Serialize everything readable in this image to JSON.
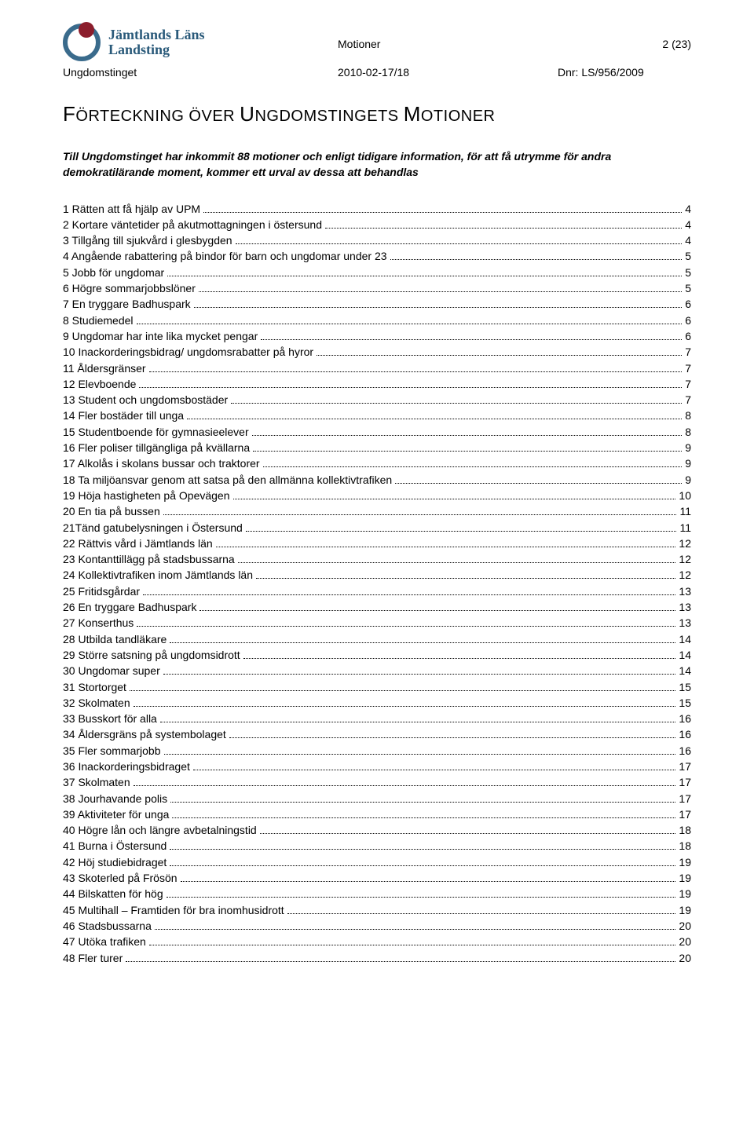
{
  "header": {
    "org_line1": "Jämtlands Läns",
    "org_line2": "Landsting",
    "doc_title": "Motioner",
    "page_indicator": "2 (23)",
    "unit": "Ungdomstinget",
    "date_range": "2010-02-17/18",
    "dnr": "Dnr: LS/956/2009"
  },
  "title_prefix": "F",
  "title_rest": "ÖRTECKNING ÖVER ",
  "title_prefix2": "U",
  "title_rest2": "NGDOMSTINGETS ",
  "title_prefix3": "M",
  "title_rest3": "OTIONER",
  "intro": "Till Ungdomstinget har inkommit 88 motioner och enligt tidigare information, för att få utrymme för andra demokratilärande moment, kommer ett urval av dessa att behandlas",
  "toc": [
    {
      "label": "1 Rätten att få hjälp av UPM",
      "page": "4"
    },
    {
      "label": "2 Kortare väntetider på akutmottagningen i östersund",
      "page": "4"
    },
    {
      "label": "3 Tillgång till sjukvård i glesbygden",
      "page": "4"
    },
    {
      "label": "4 Angående rabattering på bindor för barn och ungdomar under 23",
      "page": "5"
    },
    {
      "label": "5 Jobb för ungdomar",
      "page": "5"
    },
    {
      "label": "6 Högre sommarjobbslöner",
      "page": "5"
    },
    {
      "label": "7 En tryggare Badhuspark",
      "page": "6"
    },
    {
      "label": "8 Studiemedel",
      "page": "6"
    },
    {
      "label": "9 Ungdomar har inte lika mycket pengar",
      "page": "6"
    },
    {
      "label": "10 Inackorderingsbidrag/ ungdomsrabatter på hyror",
      "page": "7"
    },
    {
      "label": "11 Åldersgränser",
      "page": "7"
    },
    {
      "label": "12 Elevboende",
      "page": "7"
    },
    {
      "label": "13 Student och ungdomsbostäder",
      "page": "7"
    },
    {
      "label": "14 Fler bostäder till unga",
      "page": "8"
    },
    {
      "label": "15 Studentboende för gymnasieelever",
      "page": "8"
    },
    {
      "label": "16 Fler poliser tillgängliga på kvällarna",
      "page": "9"
    },
    {
      "label": "17 Alkolås i skolans bussar och traktorer",
      "page": "9"
    },
    {
      "label": "18 Ta miljöansvar genom att satsa på den allmänna kollektivtrafiken",
      "page": "9"
    },
    {
      "label": "19 Höja hastigheten på Opevägen",
      "page": "10"
    },
    {
      "label": "20 En tia på bussen",
      "page": "11"
    },
    {
      "label": "21Tänd gatubelysningen i Östersund",
      "page": "11"
    },
    {
      "label": "22 Rättvis vård i Jämtlands län",
      "page": "12"
    },
    {
      "label": "23 Kontanttillägg på stadsbussarna",
      "page": "12"
    },
    {
      "label": "24 Kollektivtrafiken inom Jämtlands län",
      "page": "12"
    },
    {
      "label": "25 Fritidsgårdar",
      "page": "13"
    },
    {
      "label": "26 En tryggare Badhuspark",
      "page": "13"
    },
    {
      "label": "27 Konserthus",
      "page": "13"
    },
    {
      "label": "28 Utbilda tandläkare",
      "page": "14"
    },
    {
      "label": "29 Större satsning på ungdomsidrott",
      "page": "14"
    },
    {
      "label": "30 Ungdomar super",
      "page": "14"
    },
    {
      "label": "31 Stortorget",
      "page": "15"
    },
    {
      "label": "32 Skolmaten",
      "page": "15"
    },
    {
      "label": "33 Busskort för alla",
      "page": "16"
    },
    {
      "label": "34 Åldersgräns på systembolaget",
      "page": "16"
    },
    {
      "label": "35 Fler sommarjobb",
      "page": "16"
    },
    {
      "label": "36 Inackorderingsbidraget",
      "page": "17"
    },
    {
      "label": "37 Skolmaten",
      "page": "17"
    },
    {
      "label": "38 Jourhavande polis",
      "page": "17"
    },
    {
      "label": "39 Aktiviteter för unga",
      "page": "17"
    },
    {
      "label": "40 Högre lån och längre avbetalningstid",
      "page": "18"
    },
    {
      "label": "41 Burna i Östersund",
      "page": "18"
    },
    {
      "label": "42 Höj studiebidraget",
      "page": "19"
    },
    {
      "label": "43 Skoterled på Frösön",
      "page": "19"
    },
    {
      "label": "44 Bilskatten för hög",
      "page": "19"
    },
    {
      "label": "45 Multihall – Framtiden för bra inomhusidrott",
      "page": "19"
    },
    {
      "label": "46 Stadsbussarna",
      "page": "20"
    },
    {
      "label": "47 Utöka trafiken",
      "page": "20"
    },
    {
      "label": "48 Fler turer",
      "page": "20"
    }
  ]
}
